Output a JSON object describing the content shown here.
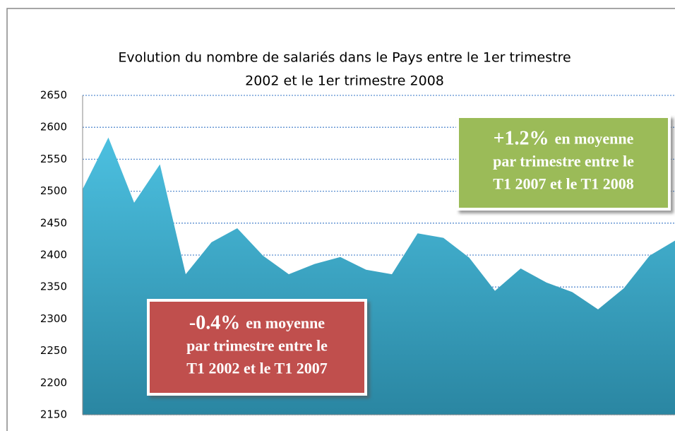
{
  "chart_data": {
    "type": "area",
    "title": [
      "Evolution du nombre de salariés dans le Pays entre le 1er trimestre",
      "2002 et  le 1er trimestre 2008"
    ],
    "values": [
      2503,
      2584,
      2482,
      2542,
      2370,
      2420,
      2442,
      2399,
      2370,
      2386,
      2397,
      2377,
      2370,
      2434,
      2427,
      2396,
      2344,
      2379,
      2357,
      2342,
      2315,
      2348,
      2399,
      2423
    ],
    "color": "#3aaed0",
    "ylim": [
      2150,
      2650
    ],
    "yticks": [
      2150,
      2200,
      2250,
      2300,
      2350,
      2400,
      2450,
      2500,
      2550,
      2600,
      2650
    ],
    "grid": true,
    "annotations": [
      {
        "lead": "-0.4%",
        "lines": [
          "en moyenne",
          "par trimestre entre le",
          "T1 2002 et le T1 2007"
        ],
        "color": "#c0504d"
      },
      {
        "lead": "+1.2%",
        "lines": [
          "en moyenne",
          "par trimestre entre le",
          "T1 2007 et le T1 2008"
        ],
        "color": "#9bbb59"
      }
    ]
  }
}
